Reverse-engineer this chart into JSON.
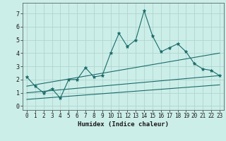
{
  "xlabel": "Humidex (Indice chaleur)",
  "bg_color": "#cceee8",
  "grid_color": "#b0d4ce",
  "line_color": "#1a6b6b",
  "xlim": [
    -0.5,
    23.5
  ],
  "ylim": [
    -0.3,
    7.8
  ],
  "xticks": [
    0,
    1,
    2,
    3,
    4,
    5,
    6,
    7,
    8,
    9,
    10,
    11,
    12,
    13,
    14,
    15,
    16,
    17,
    18,
    19,
    20,
    21,
    22,
    23
  ],
  "yticks": [
    0,
    1,
    2,
    3,
    4,
    5,
    6,
    7
  ],
  "series1_x": [
    0,
    1,
    2,
    3,
    4,
    5,
    6,
    7,
    8,
    9,
    10,
    11,
    12,
    13,
    14,
    15,
    16,
    17,
    18,
    19,
    20,
    21,
    22,
    23
  ],
  "series1_y": [
    2.2,
    1.5,
    1.0,
    1.3,
    0.6,
    2.0,
    2.0,
    2.9,
    2.2,
    2.3,
    4.0,
    5.5,
    4.5,
    5.0,
    7.2,
    5.3,
    4.1,
    4.4,
    4.7,
    4.1,
    3.2,
    2.8,
    2.7,
    2.3
  ],
  "series2_x": [
    0,
    23
  ],
  "series2_y": [
    1.5,
    4.0
  ],
  "series3_x": [
    0,
    23
  ],
  "series3_y": [
    1.0,
    2.3
  ],
  "series4_x": [
    0,
    23
  ],
  "series4_y": [
    0.5,
    1.6
  ]
}
